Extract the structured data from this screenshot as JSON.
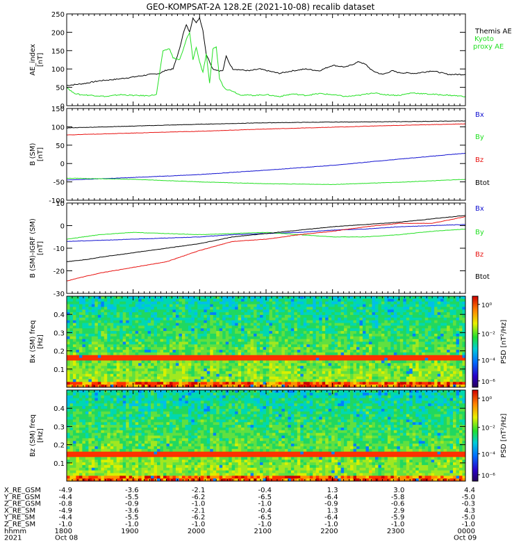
{
  "title": "GEO-KOMPSAT-2A 128.2E (2021-10-08) recalib dataset",
  "time_axis": {
    "start": "2021-10-08T18:00",
    "end": "2021-10-09T00:00",
    "ticks": [
      "1800",
      "1900",
      "2000",
      "2100",
      "2200",
      "2300",
      "0000"
    ],
    "date_left": "Oct 08",
    "date_right": "Oct 09",
    "year": "2021"
  },
  "ephemeris": {
    "rows": [
      {
        "label": "X_RE_GSM",
        "values": [
          "-4.9",
          "-3.6",
          "-2.1",
          "-0.4",
          "1.3",
          "3.0",
          "4.4"
        ]
      },
      {
        "label": "Y_RE_GSM",
        "values": [
          "-4.4",
          "-5.5",
          "-6.2",
          "-6.5",
          "-6.4",
          "-5.8",
          "-5.0"
        ]
      },
      {
        "label": "Z_RE_GSM",
        "values": [
          "-0.8",
          "-0.9",
          "-1.0",
          "-1.0",
          "-0.9",
          "-0.6",
          "-0.3"
        ]
      },
      {
        "label": "X_RE_SM",
        "values": [
          "-4.9",
          "-3.6",
          "-2.1",
          "-0.4",
          "1.3",
          "2.9",
          "4.3"
        ]
      },
      {
        "label": "Y_RE_SM",
        "values": [
          "-4.4",
          "-5.5",
          "-6.2",
          "-6.5",
          "-6.4",
          "-5.9",
          "-5.0"
        ]
      },
      {
        "label": "Z_RE_SM",
        "values": [
          "-1.0",
          "-1.0",
          "-1.0",
          "-1.0",
          "-1.0",
          "-1.0",
          "-1.0"
        ]
      },
      {
        "label": "hhmm",
        "values": [
          "1800",
          "1900",
          "2000",
          "2100",
          "2200",
          "2300",
          "0000"
        ]
      }
    ]
  },
  "colors": {
    "black": "#000000",
    "red": "#e8110f",
    "green": "#22e022",
    "blue": "#1010d0"
  },
  "chart_data": [
    {
      "type": "line",
      "ylabel": "AE_index [nT]",
      "ylim": [
        0,
        250
      ],
      "yticks": [
        0,
        50,
        100,
        150,
        200,
        250
      ],
      "series": [
        {
          "name": "Themis AE",
          "color": "#000000",
          "x": [
            0,
            0.25,
            0.5,
            0.75,
            1.0,
            1.25,
            1.4,
            1.5,
            1.6,
            1.7,
            1.75,
            1.8,
            1.85,
            1.9,
            1.95,
            2.0,
            2.05,
            2.1,
            2.2,
            2.3,
            2.35,
            2.4,
            2.45,
            2.5,
            2.6,
            2.75,
            2.9,
            3.0,
            3.2,
            3.4,
            3.6,
            3.8,
            4.0,
            4.2,
            4.4,
            4.5,
            4.6,
            4.75,
            4.9,
            5.0,
            5.25,
            5.5,
            5.75,
            6.0
          ],
          "y": [
            55,
            60,
            68,
            72,
            78,
            85,
            88,
            97,
            100,
            155,
            195,
            220,
            200,
            240,
            225,
            240,
            205,
            140,
            100,
            95,
            95,
            135,
            115,
            100,
            98,
            95,
            100,
            96,
            88,
            95,
            100,
            95,
            110,
            105,
            120,
            112,
            95,
            85,
            95,
            90,
            88,
            95,
            85,
            85
          ]
        },
        {
          "name": "Kyoto proxy AE",
          "color": "#22e022",
          "x": [
            0,
            0.1,
            0.2,
            0.4,
            0.6,
            0.8,
            1.0,
            1.2,
            1.35,
            1.45,
            1.55,
            1.6,
            1.7,
            1.75,
            1.8,
            1.85,
            1.9,
            1.95,
            2.0,
            2.05,
            2.1,
            2.15,
            2.2,
            2.25,
            2.3,
            2.35,
            2.4,
            2.5,
            2.6,
            2.8,
            3.0,
            3.2,
            3.4,
            3.6,
            3.8,
            4.0,
            4.2,
            4.4,
            4.6,
            4.8,
            5.0,
            5.2,
            5.4,
            5.6,
            5.8,
            6.0
          ],
          "y": [
            50,
            35,
            30,
            28,
            25,
            30,
            28,
            27,
            30,
            150,
            155,
            130,
            125,
            150,
            180,
            200,
            125,
            160,
            120,
            90,
            140,
            60,
            155,
            160,
            75,
            55,
            45,
            40,
            30,
            28,
            30,
            25,
            32,
            28,
            33,
            30,
            25,
            28,
            35,
            30,
            28,
            35,
            32,
            30,
            28,
            25
          ]
        }
      ]
    },
    {
      "type": "line",
      "ylabel": "B (SM) [nT]",
      "ylim": [
        -100,
        150
      ],
      "yticks": [
        -100,
        -50,
        0,
        50,
        100,
        150
      ],
      "series": [
        {
          "name": "Bx",
          "color": "#1010d0",
          "x": [
            0,
            1,
            2,
            3,
            4,
            5,
            6
          ],
          "y": [
            -45,
            -38,
            -30,
            -18,
            -5,
            12,
            28
          ]
        },
        {
          "name": "By",
          "color": "#22e022",
          "x": [
            0,
            1,
            2,
            3,
            4,
            5,
            6
          ],
          "y": [
            -40,
            -43,
            -50,
            -55,
            -57,
            -51,
            -43
          ]
        },
        {
          "name": "Bz",
          "color": "#e8110f",
          "x": [
            0,
            1,
            2,
            3,
            4,
            5,
            6
          ],
          "y": [
            78,
            83,
            88,
            94,
            99,
            104,
            108
          ]
        },
        {
          "name": "Btot",
          "color": "#000000",
          "x": [
            0,
            1,
            2,
            3,
            4,
            5,
            6
          ],
          "y": [
            97,
            102,
            107,
            111,
            113,
            114,
            116
          ]
        }
      ]
    },
    {
      "type": "line",
      "ylabel": "B (SM)-IGRF (SM) [nT]",
      "ylim": [
        -30,
        10
      ],
      "yticks": [
        -30,
        -20,
        -10,
        0,
        10
      ],
      "series": [
        {
          "name": "Bx",
          "color": "#1010d0",
          "x": [
            0,
            0.5,
            1,
            1.5,
            2,
            2.5,
            3,
            3.5,
            4,
            4.5,
            5,
            5.5,
            6
          ],
          "y": [
            -7,
            -6.5,
            -6,
            -5.5,
            -5,
            -4,
            -3.5,
            -3,
            -2,
            -1.5,
            -0.5,
            0,
            0.5
          ]
        },
        {
          "name": "By",
          "color": "#22e022",
          "x": [
            0,
            0.5,
            1,
            1.5,
            2,
            2.5,
            3,
            3.5,
            4,
            4.5,
            5,
            5.5,
            6
          ],
          "y": [
            -6,
            -4,
            -3,
            -3.5,
            -4,
            -3.5,
            -3,
            -4,
            -5,
            -5,
            -4,
            -2.5,
            -1.5
          ]
        },
        {
          "name": "Bz",
          "color": "#e8110f",
          "x": [
            0,
            0.2,
            0.5,
            1,
            1.5,
            2,
            2.5,
            3,
            3.5,
            4,
            4.5,
            5,
            5.5,
            6
          ],
          "y": [
            -24.5,
            -23,
            -21,
            -18.5,
            -16,
            -11,
            -7,
            -6,
            -4,
            -2.5,
            -0.5,
            1,
            1,
            4
          ]
        },
        {
          "name": "Btot",
          "color": "#000000",
          "x": [
            0,
            0.3,
            0.5,
            1,
            1.5,
            2,
            2.5,
            3,
            3.5,
            4,
            4.5,
            5,
            5.5,
            6
          ],
          "y": [
            -16,
            -15,
            -14,
            -12,
            -10,
            -8,
            -5,
            -3.5,
            -2,
            -0.5,
            0.5,
            1.5,
            3,
            4.5
          ]
        }
      ]
    },
    {
      "type": "heatmap",
      "ylabel": "Bx (SM) freq [Hz]",
      "colorbar_label": "PSD [nT²/Hz]",
      "ylim": [
        0,
        0.5
      ],
      "yticks": [
        0.1,
        0.2,
        0.3,
        0.4
      ],
      "colorbar_ticks": [
        "10⁰",
        "10⁻²",
        "10⁻⁴",
        "10⁻⁶"
      ],
      "band_hz": 0.17
    },
    {
      "type": "heatmap",
      "ylabel": "Bz (SM) freq [Hz]",
      "colorbar_label": "PSD [nT²/Hz]",
      "ylim": [
        0,
        0.5
      ],
      "yticks": [
        0.1,
        0.2,
        0.3,
        0.4
      ],
      "colorbar_ticks": [
        "10⁰",
        "10⁻²",
        "10⁻⁴",
        "10⁻⁶"
      ],
      "band_hz": 0.165
    }
  ]
}
